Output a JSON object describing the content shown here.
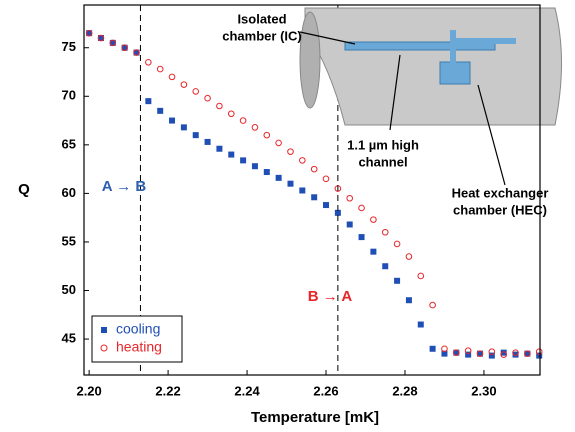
{
  "chart_data": {
    "type": "scatter",
    "xlabel": "Temperature [mK]",
    "ylabel": "Q",
    "xlim": [
      2.1987,
      2.3142
    ],
    "ylim": [
      41.3,
      79.4
    ],
    "xticks": [
      {
        "value": 2.2,
        "label": "2.20"
      },
      {
        "value": 2.22,
        "label": "2.22"
      },
      {
        "value": 2.24,
        "label": "2.24"
      },
      {
        "value": 2.26,
        "label": "2.26"
      },
      {
        "value": 2.28,
        "label": "2.28"
      },
      {
        "value": 2.3,
        "label": "2.30"
      }
    ],
    "yticks": [
      45,
      50,
      55,
      60,
      65,
      70,
      75
    ],
    "x": [
      2.2,
      2.203,
      2.206,
      2.209,
      2.212,
      2.215,
      2.218,
      2.221,
      2.224,
      2.227,
      2.23,
      2.233,
      2.236,
      2.239,
      2.242,
      2.245,
      2.248,
      2.251,
      2.254,
      2.257,
      2.26,
      2.263,
      2.266,
      2.269,
      2.272,
      2.275,
      2.278,
      2.281,
      2.284,
      2.287,
      2.29,
      2.293,
      2.296,
      2.299,
      2.302,
      2.305,
      2.308,
      2.311,
      2.314
    ],
    "series": [
      {
        "name": "cooling",
        "color": "#1f4fb5",
        "marker": "square",
        "values": [
          76.5,
          76,
          75.5,
          75,
          74.5,
          69.5,
          68.5,
          67.5,
          66.8,
          66,
          65.3,
          64.6,
          64,
          63.4,
          62.8,
          62.2,
          61.6,
          61,
          60.3,
          59.6,
          58.8,
          58,
          56.8,
          55.5,
          54,
          52.5,
          51,
          49,
          46.5,
          44,
          43.5,
          43.6,
          43.4,
          43.5,
          43.3,
          43.6,
          43.4,
          43.5,
          43.3
        ]
      },
      {
        "name": "heating",
        "color": "#e8262a",
        "marker": "circle",
        "values": [
          76.5,
          76,
          75.5,
          75,
          74.5,
          73.5,
          72.8,
          72,
          71.2,
          70.5,
          69.8,
          69,
          68.2,
          67.5,
          66.8,
          66,
          65.2,
          64.3,
          63.4,
          62.5,
          61.5,
          60.5,
          59.5,
          58.5,
          57.3,
          56,
          54.8,
          53.5,
          51.5,
          48.5,
          44,
          43.6,
          43.8,
          43.5,
          43.7,
          43.4,
          43.6,
          43.5,
          43.7
        ]
      }
    ],
    "vlines": [
      2.213,
      2.263
    ],
    "annotations": [
      {
        "text": "A → B",
        "color": "#2e5fb0"
      },
      {
        "text": "B → A",
        "color": "#e8262a"
      }
    ],
    "inset_labels": [
      [
        "Isolated",
        "chamber (IC)"
      ],
      [
        "1.1 µm high",
        "channel"
      ],
      [
        "Heat exchanger",
        "chamber (HEC)"
      ]
    ]
  }
}
